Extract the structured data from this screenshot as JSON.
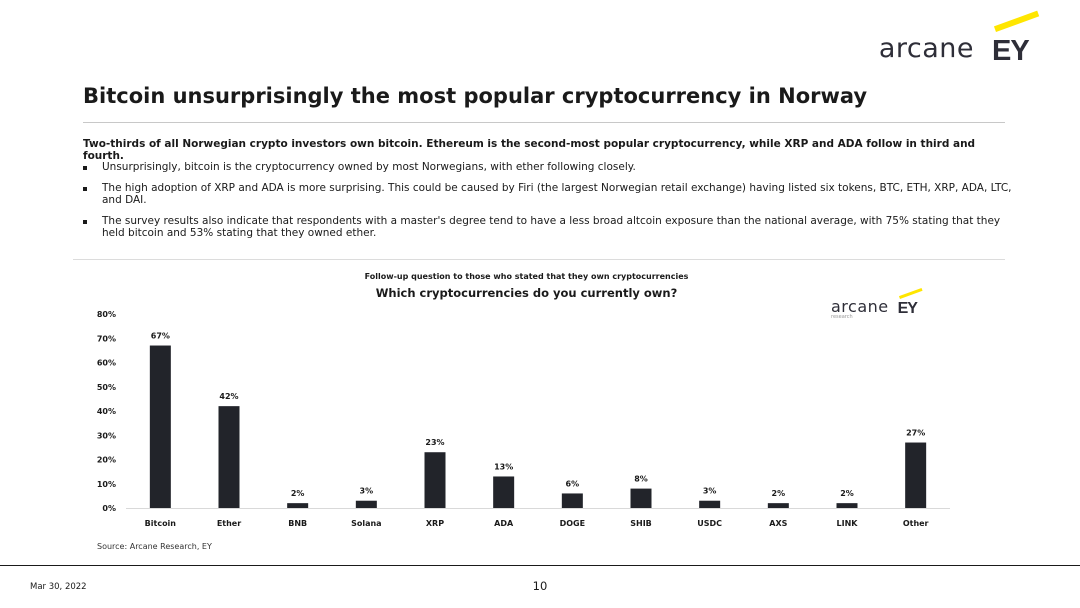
{
  "header": {
    "logo_word": "arcane",
    "logo_mark": "EY",
    "logo_mark_color": "#ffe600"
  },
  "slide": {
    "title": "Bitcoin unsurprisingly the most popular cryptocurrency in Norway",
    "lead": "Two-thirds of all Norwegian crypto investors own bitcoin. Ethereum is the second-most popular cryptocurrency, while XRP and ADA follow in third and fourth.",
    "bullets": [
      "Unsurprisingly, bitcoin is the cryptocurrency owned by most Norwegians, with ether following closely.",
      "The high adoption of XRP and ADA is more surprising. This could be caused by Firi (the largest Norwegian retail exchange) having listed six tokens, BTC, ETH, XRP, ADA, LTC, and DAI.",
      "The survey results also indicate that respondents with a master's degree tend to have a less broad altcoin exposure than the national average, with 75% stating that they held bitcoin and 53% stating that they owned ether."
    ]
  },
  "chart_logo": {
    "word": "arcane",
    "sub": "research",
    "mark": "EY"
  },
  "chart_data": {
    "type": "bar",
    "subtitle": "Follow-up question to those who stated that they own cryptocurrencies",
    "title": "Which cryptocurrencies do you currently own?",
    "categories": [
      "Bitcoin",
      "Ether",
      "BNB",
      "Solana",
      "XRP",
      "ADA",
      "DOGE",
      "SHIB",
      "USDC",
      "AXS",
      "LINK",
      "Other"
    ],
    "values": [
      67,
      42,
      2,
      3,
      23,
      13,
      6,
      8,
      3,
      2,
      2,
      27
    ],
    "value_labels": [
      "67%",
      "42%",
      "2%",
      "3%",
      "23%",
      "13%",
      "6%",
      "8%",
      "3%",
      "2%",
      "2%",
      "27%"
    ],
    "ylim": [
      0,
      80
    ],
    "yticks": [
      0,
      10,
      20,
      30,
      40,
      50,
      60,
      70,
      80
    ],
    "ytick_labels": [
      "0%",
      "10%",
      "20%",
      "30%",
      "40%",
      "50%",
      "60%",
      "70%",
      "80%"
    ],
    "bar_color": "#22242a",
    "grid": false,
    "legend": "none",
    "source": "Source: Arcane Research, EY"
  },
  "footer": {
    "date": "Mar 30, 2022",
    "page": "10"
  }
}
